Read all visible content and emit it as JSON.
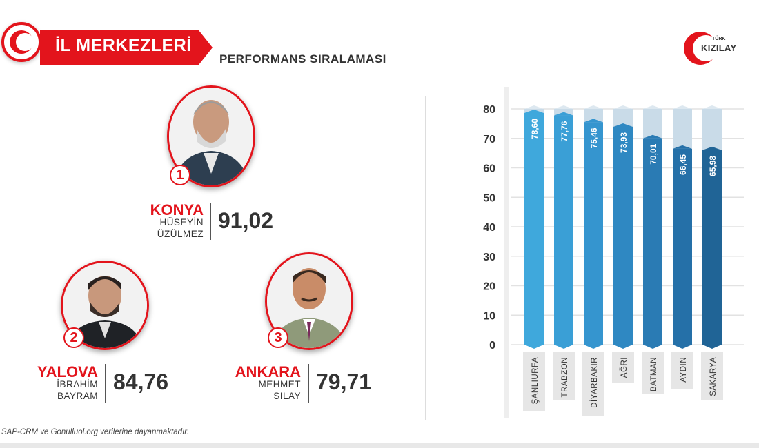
{
  "header": {
    "banner_title": "İL MERKEZLERİ",
    "subtitle": "PERFORMANS SIRALAMASI",
    "brand_top": "TÜRK",
    "brand_name": "KIZILAY"
  },
  "colors": {
    "accent": "#e3141c",
    "text": "#333333"
  },
  "winners": [
    {
      "rank": "1",
      "city": "KONYA",
      "name_line1": "HÜSEYİN",
      "name_line2": "ÜZÜLMEZ",
      "score": "91,02"
    },
    {
      "rank": "2",
      "city": "YALOVA",
      "name_line1": "İBRAHİM",
      "name_line2": "BAYRAM",
      "score": "84,76"
    },
    {
      "rank": "3",
      "city": "ANKARA",
      "name_line1": "MEHMET",
      "name_line2": "SILAY",
      "score": "79,71"
    }
  ],
  "footnote": "SAP-CRM ve Gonulluol.org verilerine dayanmaktadır.",
  "chart_data": {
    "type": "bar",
    "categories": [
      "ŞANLIURFA",
      "TRABZON",
      "DİYARBAKIR",
      "AĞRI",
      "BATMAN",
      "AYDIN",
      "SAKARYA"
    ],
    "values": [
      78.6,
      77.76,
      75.46,
      73.93,
      70.01,
      66.45,
      65.98
    ],
    "value_labels": [
      "78,60",
      "77,76",
      "75,46",
      "73,93",
      "70,01",
      "66,45",
      "65,98"
    ],
    "yticks": [
      "0",
      "10",
      "20",
      "30",
      "40",
      "50",
      "60",
      "70",
      "80"
    ],
    "ylim": [
      0,
      80
    ],
    "grid": true,
    "bar_colors": [
      "#3fa8dc",
      "#3a9fd6",
      "#3595cf",
      "#2f88c2",
      "#2a7bb4",
      "#2570a8",
      "#206496"
    ]
  }
}
